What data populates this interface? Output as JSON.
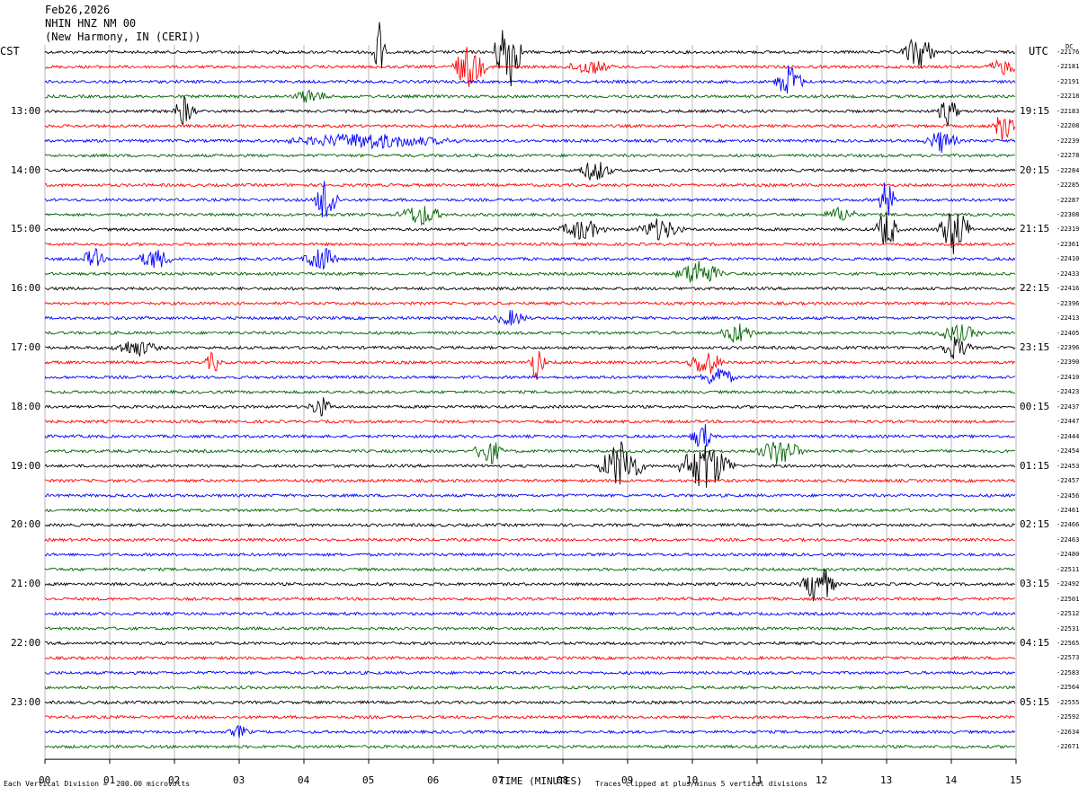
{
  "header": {
    "date": "Feb26,2026",
    "station": "NHIN HNZ NM 00",
    "location": "(New Harmony, IN (CERI))"
  },
  "left_zone": "CST",
  "right_zone": "UTC",
  "dc_label": "DC",
  "footer": {
    "scale_note": "Each Vertical Division =  200.00 microvolts",
    "xaxis_title": "TIME (MINUTES)",
    "clip_note": "Traces clipped at plus/minus 5 vertical divisions"
  },
  "colors": {
    "trace_cycle": [
      "#000000",
      "#ff0000",
      "#0000ff",
      "#006400"
    ],
    "grid": "#888888"
  },
  "chart_data": {
    "type": "seismogram (helicorder)",
    "x_axis": {
      "label": "TIME (MINUTES)",
      "range": [
        0,
        15
      ],
      "ticks": [
        "00",
        "01",
        "02",
        "03",
        "04",
        "05",
        "06",
        "07",
        "08",
        "09",
        "10",
        "11",
        "12",
        "13",
        "14",
        "15"
      ]
    },
    "minutes_per_line": 15,
    "lines": 48,
    "left_time_labels": [
      {
        "line": 4,
        "text": "13:00"
      },
      {
        "line": 8,
        "text": "14:00"
      },
      {
        "line": 12,
        "text": "15:00"
      },
      {
        "line": 16,
        "text": "16:00"
      },
      {
        "line": 20,
        "text": "17:00"
      },
      {
        "line": 24,
        "text": "18:00"
      },
      {
        "line": 28,
        "text": "19:00"
      },
      {
        "line": 32,
        "text": "20:00"
      },
      {
        "line": 36,
        "text": "21:00"
      },
      {
        "line": 40,
        "text": "22:00"
      },
      {
        "line": 44,
        "text": "23:00"
      }
    ],
    "right_time_labels": [
      {
        "line": 4,
        "text": "19:15"
      },
      {
        "line": 8,
        "text": "20:15"
      },
      {
        "line": 12,
        "text": "21:15"
      },
      {
        "line": 16,
        "text": "22:15"
      },
      {
        "line": 20,
        "text": "23:15"
      },
      {
        "line": 24,
        "text": "00:15"
      },
      {
        "line": 28,
        "text": "01:15"
      },
      {
        "line": 32,
        "text": "02:15"
      },
      {
        "line": 36,
        "text": "03:15"
      },
      {
        "line": 40,
        "text": "04:15"
      },
      {
        "line": 44,
        "text": "05:15"
      }
    ],
    "dc_offsets": [
      "-22176",
      "-22181",
      "-22191",
      "-22218",
      "-22183",
      "-22208",
      "-22239",
      "-22278",
      "-22284",
      "-22285",
      "-22287",
      "-22308",
      "-22319",
      "-22361",
      "-22410",
      "-22433",
      "-22416",
      "-22396",
      "-22413",
      "-22405",
      "-22396",
      "-22390",
      "-22410",
      "-22423",
      "-22437",
      "-22447",
      "-22444",
      "-22454",
      "-22453",
      "-22457",
      "-22456",
      "-22461",
      "-22466",
      "-22463",
      "-22480",
      "-22511",
      "-22492",
      "-22501",
      "-22512",
      "-22531",
      "-22565",
      "-22573",
      "-22583",
      "-22564",
      "-22555",
      "-22592",
      "-22634",
      "-22671"
    ],
    "events": [
      {
        "line": 0,
        "minute": 5.15,
        "amplitude": 5,
        "duration": 0.12
      },
      {
        "line": 0,
        "minute": 7.15,
        "amplitude": 6,
        "duration": 0.25
      },
      {
        "line": 0,
        "minute": 13.5,
        "amplitude": 2.5,
        "duration": 0.3
      },
      {
        "line": 1,
        "minute": 6.55,
        "amplitude": 3,
        "duration": 0.3
      },
      {
        "line": 1,
        "minute": 8.4,
        "amplitude": 1,
        "duration": 0.4
      },
      {
        "line": 1,
        "minute": 14.8,
        "amplitude": 1,
        "duration": 0.3
      },
      {
        "line": 2,
        "minute": 11.5,
        "amplitude": 2.5,
        "duration": 0.25
      },
      {
        "line": 3,
        "minute": 4.1,
        "amplitude": 1,
        "duration": 0.3
      },
      {
        "line": 4,
        "minute": 2.15,
        "amplitude": 2,
        "duration": 0.2
      },
      {
        "line": 4,
        "minute": 13.95,
        "amplitude": 2,
        "duration": 0.2
      },
      {
        "line": 5,
        "minute": 14.8,
        "amplitude": 2,
        "duration": 0.2
      },
      {
        "line": 6,
        "minute": 5.0,
        "amplitude": 1,
        "duration": 1.5
      },
      {
        "line": 6,
        "minute": 13.85,
        "amplitude": 1.5,
        "duration": 0.3
      },
      {
        "line": 8,
        "minute": 8.5,
        "amplitude": 1.5,
        "duration": 0.3
      },
      {
        "line": 10,
        "minute": 4.35,
        "amplitude": 4,
        "duration": 0.2
      },
      {
        "line": 10,
        "minute": 13.0,
        "amplitude": 3,
        "duration": 0.15
      },
      {
        "line": 11,
        "minute": 5.8,
        "amplitude": 1.5,
        "duration": 0.4
      },
      {
        "line": 11,
        "minute": 12.3,
        "amplitude": 1,
        "duration": 0.3
      },
      {
        "line": 12,
        "minute": 8.3,
        "amplitude": 1.5,
        "duration": 0.4
      },
      {
        "line": 12,
        "minute": 9.5,
        "amplitude": 1.5,
        "duration": 0.4
      },
      {
        "line": 12,
        "minute": 13.0,
        "amplitude": 3,
        "duration": 0.2
      },
      {
        "line": 12,
        "minute": 14.05,
        "amplitude": 3.5,
        "duration": 0.3
      },
      {
        "line": 14,
        "minute": 0.75,
        "amplitude": 1.5,
        "duration": 0.2
      },
      {
        "line": 14,
        "minute": 1.7,
        "amplitude": 1.5,
        "duration": 0.3
      },
      {
        "line": 14,
        "minute": 4.25,
        "amplitude": 2,
        "duration": 0.3
      },
      {
        "line": 15,
        "minute": 10.1,
        "amplitude": 2,
        "duration": 0.4
      },
      {
        "line": 18,
        "minute": 7.2,
        "amplitude": 1,
        "duration": 0.3
      },
      {
        "line": 19,
        "minute": 10.7,
        "amplitude": 1.5,
        "duration": 0.3
      },
      {
        "line": 19,
        "minute": 14.1,
        "amplitude": 1.2,
        "duration": 0.4
      },
      {
        "line": 20,
        "minute": 1.4,
        "amplitude": 1.2,
        "duration": 0.4
      },
      {
        "line": 20,
        "minute": 14.05,
        "amplitude": 1.5,
        "duration": 0.3
      },
      {
        "line": 21,
        "minute": 2.6,
        "amplitude": 1.5,
        "duration": 0.15
      },
      {
        "line": 21,
        "minute": 7.6,
        "amplitude": 2.5,
        "duration": 0.15
      },
      {
        "line": 21,
        "minute": 10.2,
        "amplitude": 2,
        "duration": 0.3
      },
      {
        "line": 22,
        "minute": 10.4,
        "amplitude": 1.5,
        "duration": 0.3
      },
      {
        "line": 24,
        "minute": 4.25,
        "amplitude": 1.5,
        "duration": 0.2
      },
      {
        "line": 26,
        "minute": 10.15,
        "amplitude": 2,
        "duration": 0.2
      },
      {
        "line": 27,
        "minute": 6.85,
        "amplitude": 2,
        "duration": 0.25
      },
      {
        "line": 27,
        "minute": 11.35,
        "amplitude": 2,
        "duration": 0.4
      },
      {
        "line": 28,
        "minute": 8.9,
        "amplitude": 3.5,
        "duration": 0.4
      },
      {
        "line": 28,
        "minute": 10.2,
        "amplitude": 3.5,
        "duration": 0.5
      },
      {
        "line": 36,
        "minute": 11.95,
        "amplitude": 3,
        "duration": 0.3
      },
      {
        "line": 46,
        "minute": 3.0,
        "amplitude": 0.8,
        "duration": 0.2
      }
    ]
  }
}
